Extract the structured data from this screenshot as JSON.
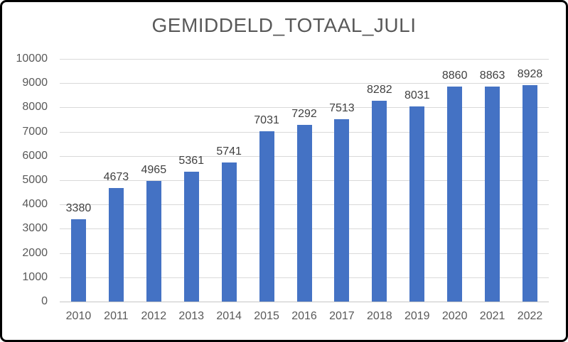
{
  "chart_data": {
    "type": "bar",
    "title": "GEMIDDELD_TOTAAL_JULI",
    "categories": [
      "2010",
      "2011",
      "2012",
      "2013",
      "2014",
      "2015",
      "2016",
      "2017",
      "2018",
      "2019",
      "2020",
      "2021",
      "2022"
    ],
    "values": [
      3380,
      4673,
      4965,
      5361,
      5741,
      7031,
      7292,
      7513,
      8282,
      8031,
      8860,
      8863,
      8928
    ],
    "data_labels_visible": true,
    "xlabel": "",
    "ylabel": "",
    "ylim": [
      0,
      10000
    ],
    "ytick_step": 1000,
    "yticks": [
      0,
      1000,
      2000,
      3000,
      4000,
      5000,
      6000,
      7000,
      8000,
      9000,
      10000
    ],
    "grid": "horizontal",
    "legend": "none",
    "colors": {
      "bar": "#4472C4",
      "gridline": "#D9D9D9",
      "axis_line": "#C6C6C6",
      "title_text": "#595959",
      "axis_text": "#595959",
      "data_label_text": "#404040",
      "frame_border": "#000000",
      "background": "#FFFFFF"
    }
  }
}
